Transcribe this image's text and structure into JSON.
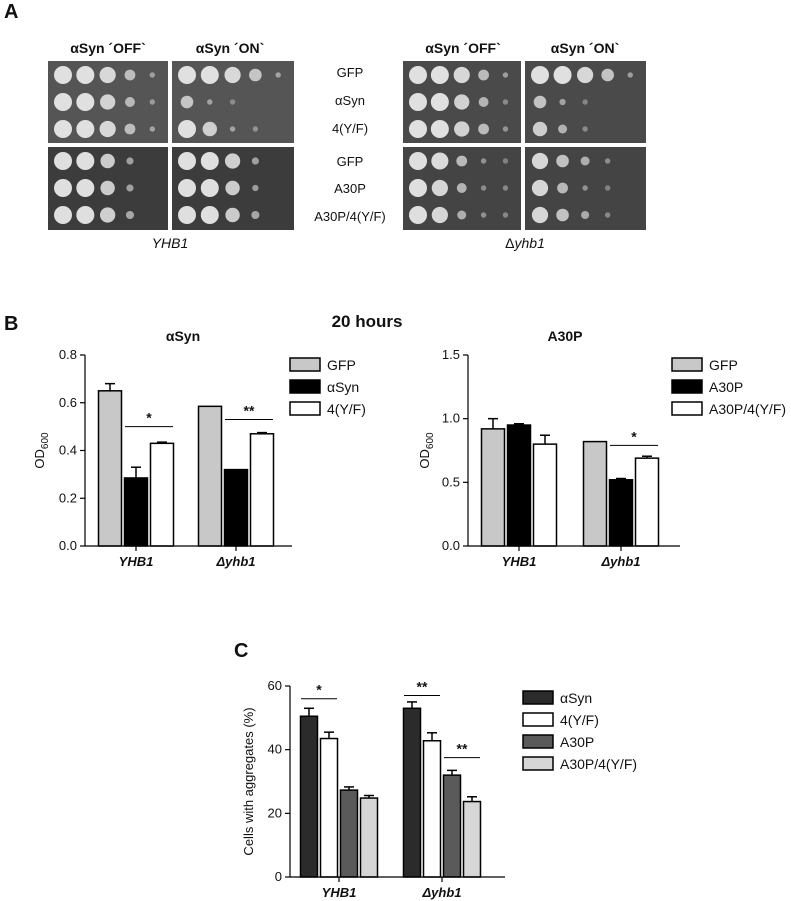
{
  "panel_a": {
    "letter": "A",
    "col_off": "αSyn ´OFF`",
    "col_on": "αSyn ´ON`",
    "row_labels": [
      "GFP",
      "αSyn",
      "4(Y/F)",
      "GFP",
      "A30P",
      "A30P/4(Y/F)"
    ],
    "strain_left": "YHB1",
    "strain_right_prefix": "Δ",
    "strain_right": "yhb1"
  },
  "panel_b": {
    "letter": "B",
    "heading": "20 hours"
  },
  "panel_c": {
    "letter": "C"
  },
  "colors": {
    "gfp": "#c8c8c8",
    "black": "#000000",
    "white": "#ffffff",
    "dark": "#2b2b2b",
    "mid": "#5a5a5a",
    "light": "#d6d6d6"
  },
  "chart_data": [
    {
      "type": "bar",
      "title": "αSyn",
      "ylabel": "OD",
      "ylabel_sub": "600",
      "ylim": [
        0,
        0.8
      ],
      "yticks": [
        "0.0",
        "0.2",
        "0.4",
        "0.6",
        "0.8"
      ],
      "categories": [
        "YHB1",
        "Δyhb1"
      ],
      "legend_position": "right",
      "series": [
        {
          "name": "GFP",
          "values": [
            0.65,
            0.585
          ],
          "errors": [
            0.03,
            0.0
          ],
          "color": "#c8c8c8"
        },
        {
          "name": "αSyn",
          "values": [
            0.285,
            0.32
          ],
          "errors": [
            0.045,
            0.0
          ],
          "color": "#000000"
        },
        {
          "name": "4(Y/F)",
          "values": [
            0.43,
            0.47
          ],
          "errors": [
            0.005,
            0.005
          ],
          "color": "#ffffff"
        }
      ],
      "significance": [
        {
          "category": 0,
          "from": 1,
          "to": 2,
          "label": "*",
          "y": 0.5
        },
        {
          "category": 1,
          "from": 1,
          "to": 2,
          "label": "**",
          "y": 0.53
        }
      ]
    },
    {
      "type": "bar",
      "title": "A30P",
      "ylabel": "OD",
      "ylabel_sub": "600",
      "ylim": [
        0,
        1.5
      ],
      "yticks": [
        "0.0",
        "0.5",
        "1.0",
        "1.5"
      ],
      "categories": [
        "YHB1",
        "Δyhb1"
      ],
      "legend_position": "right",
      "series": [
        {
          "name": "GFP",
          "values": [
            0.92,
            0.82
          ],
          "errors": [
            0.08,
            0.0
          ],
          "color": "#c8c8c8"
        },
        {
          "name": "A30P",
          "values": [
            0.95,
            0.52
          ],
          "errors": [
            0.01,
            0.01
          ],
          "color": "#000000"
        },
        {
          "name": "A30P/4(Y/F)",
          "values": [
            0.8,
            0.69
          ],
          "errors": [
            0.07,
            0.015
          ],
          "color": "#ffffff"
        }
      ],
      "significance": [
        {
          "category": 1,
          "from": 1,
          "to": 2,
          "label": "*",
          "y": 0.79
        }
      ]
    },
    {
      "type": "bar",
      "title": "",
      "ylabel": "Cells with aggregates (%)",
      "ylabel_sub": "",
      "ylim": [
        0,
        60
      ],
      "yticks": [
        "0",
        "20",
        "40",
        "60"
      ],
      "categories": [
        "YHB1",
        "Δyhb1"
      ],
      "legend_position": "right",
      "series": [
        {
          "name": "αSyn",
          "values": [
            50.5,
            53
          ],
          "errors": [
            2.5,
            2
          ],
          "color": "#2b2b2b"
        },
        {
          "name": "4(Y/F)",
          "values": [
            43.5,
            42.8
          ],
          "errors": [
            2,
            2.5
          ],
          "color": "#ffffff"
        },
        {
          "name": "A30P",
          "values": [
            27.3,
            32
          ],
          "errors": [
            1,
            1.5
          ],
          "color": "#5a5a5a"
        },
        {
          "name": "A30P/4(Y/F)",
          "values": [
            24.8,
            23.7
          ],
          "errors": [
            0.8,
            1.5
          ],
          "color": "#d6d6d6"
        }
      ],
      "significance": [
        {
          "category": 0,
          "from": 0,
          "to": 1,
          "label": "*",
          "y": 56
        },
        {
          "category": 1,
          "from": 0,
          "to": 1,
          "label": "**",
          "y": 57
        },
        {
          "category": 1,
          "from": 2,
          "to": 3,
          "label": "**",
          "y": 37.5
        }
      ]
    }
  ]
}
